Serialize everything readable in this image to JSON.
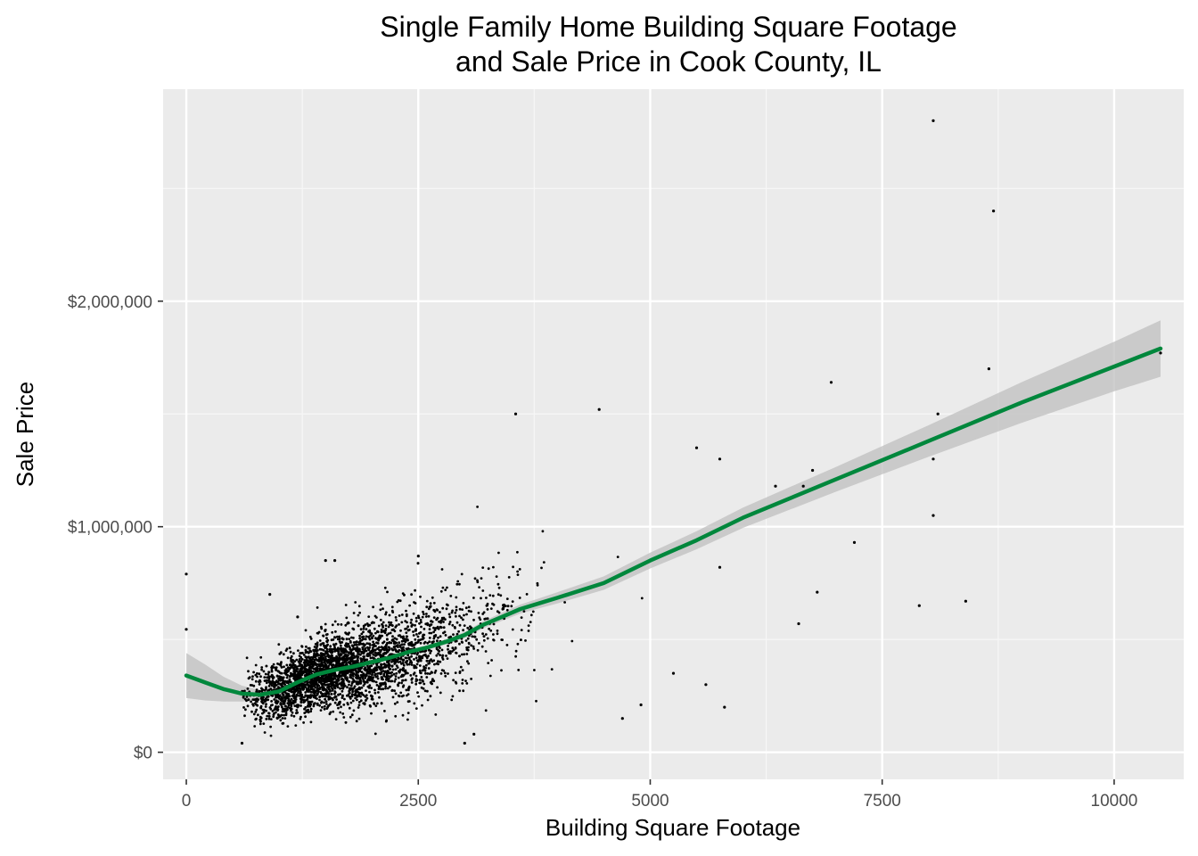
{
  "chart_data": {
    "type": "scatter",
    "title_lines": [
      "Single Family Home Building Square Footage",
      "and Sale Price in Cook County, IL"
    ],
    "xlabel": "Building Square Footage",
    "ylabel": "Sale Price",
    "xlim": [
      -250,
      10750
    ],
    "ylim": [
      -120000,
      2940000
    ],
    "x_ticks": [
      0,
      2500,
      5000,
      7500,
      10000
    ],
    "x_tick_labels": [
      "0",
      "2500",
      "5000",
      "7500",
      "10000"
    ],
    "y_ticks": [
      0,
      1000000,
      2000000
    ],
    "y_tick_labels": [
      "$0",
      "$1,000,000",
      "$2,000,000"
    ],
    "grid": true,
    "background": "#ebebeb",
    "point_color": "#000000",
    "smooth_color": "#00873c",
    "band_color": "#bfbfbf",
    "smooth": {
      "x": [
        0,
        200,
        400,
        600,
        800,
        1000,
        1200,
        1400,
        1600,
        1800,
        2000,
        2200,
        2400,
        2600,
        2800,
        3000,
        3200,
        3400,
        3600,
        3800,
        4000,
        4500,
        5000,
        5500,
        6000,
        7000,
        8000,
        9000,
        10000,
        10500
      ],
      "y": [
        340000,
        310000,
        280000,
        260000,
        255000,
        270000,
        310000,
        345000,
        365000,
        380000,
        400000,
        420000,
        445000,
        465000,
        490000,
        520000,
        565000,
        600000,
        635000,
        660000,
        685000,
        750000,
        850000,
        940000,
        1040000,
        1210000,
        1380000,
        1550000,
        1710000,
        1790000
      ],
      "band_halfwidth": [
        100000,
        80000,
        55000,
        35000,
        20000,
        14000,
        11000,
        10000,
        10000,
        10000,
        10000,
        10000,
        10000,
        10000,
        12000,
        14000,
        16000,
        18000,
        20000,
        22000,
        25000,
        30000,
        35000,
        40000,
        45000,
        55000,
        70000,
        90000,
        110000,
        125000
      ]
    },
    "sample_points": [
      {
        "x": 0,
        "y": 790000
      },
      {
        "x": 0,
        "y": 545000
      },
      {
        "x": 8050,
        "y": 2800000
      },
      {
        "x": 8700,
        "y": 2400000
      },
      {
        "x": 10500,
        "y": 1770000
      },
      {
        "x": 8650,
        "y": 1700000
      },
      {
        "x": 6950,
        "y": 1640000
      },
      {
        "x": 8100,
        "y": 1500000
      },
      {
        "x": 8050,
        "y": 1300000
      },
      {
        "x": 8050,
        "y": 1050000
      },
      {
        "x": 8400,
        "y": 670000
      },
      {
        "x": 7900,
        "y": 650000
      },
      {
        "x": 7200,
        "y": 930000
      },
      {
        "x": 6750,
        "y": 1250000
      },
      {
        "x": 6650,
        "y": 1180000
      },
      {
        "x": 6350,
        "y": 1180000
      },
      {
        "x": 6800,
        "y": 710000
      },
      {
        "x": 6600,
        "y": 570000
      },
      {
        "x": 5750,
        "y": 1300000
      },
      {
        "x": 5500,
        "y": 1350000
      },
      {
        "x": 5750,
        "y": 820000
      },
      {
        "x": 5800,
        "y": 200000
      },
      {
        "x": 5600,
        "y": 300000
      },
      {
        "x": 5250,
        "y": 350000
      },
      {
        "x": 4900,
        "y": 210000
      },
      {
        "x": 4700,
        "y": 150000
      },
      {
        "x": 4450,
        "y": 1520000
      },
      {
        "x": 3550,
        "y": 1500000
      },
      {
        "x": 3000,
        "y": 40000
      },
      {
        "x": 3100,
        "y": 80000
      },
      {
        "x": 900,
        "y": 700000
      },
      {
        "x": 600,
        "y": 40000
      },
      {
        "x": 1200,
        "y": 600000
      },
      {
        "x": 1500,
        "y": 850000
      },
      {
        "x": 1600,
        "y": 850000
      },
      {
        "x": 2500,
        "y": 870000
      }
    ],
    "cluster_seed": 12345
  }
}
